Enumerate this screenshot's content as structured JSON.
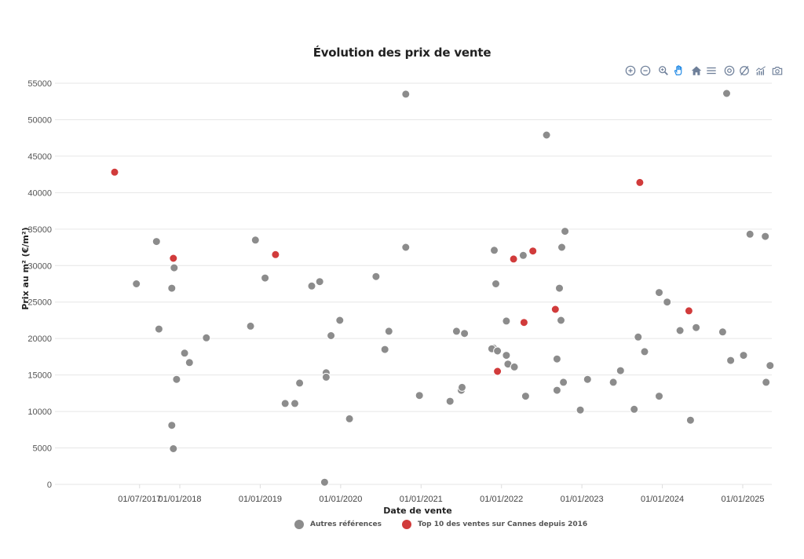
{
  "title": "Évolution des prix de vente",
  "toolbar": {
    "buttons": [
      {
        "name": "zoom-in-icon",
        "label": "Zoom in"
      },
      {
        "name": "zoom-out-icon",
        "label": "Zoom out"
      },
      {
        "name": "zoom-selection-icon",
        "label": "Selection zoom"
      },
      {
        "name": "pan-hand-icon",
        "label": "Panning",
        "active": true
      },
      {
        "name": "home-reset-icon",
        "label": "Reset zoom"
      },
      {
        "name": "menu-icon",
        "label": "Menu"
      },
      {
        "name": "circle-target-icon",
        "label": "Marker"
      },
      {
        "name": "circle-slash-icon",
        "label": "Clear"
      },
      {
        "name": "chart-bars-icon",
        "label": "Chart"
      },
      {
        "name": "camera-icon",
        "label": "Download"
      }
    ]
  },
  "colors": {
    "grey_series": "#8c8c8c",
    "red_series": "#d13b3b",
    "grid": "#e6e6e6",
    "toolbar_icon": "#6e7f99",
    "toolbar_active": "#1e88e5"
  },
  "chart_data": {
    "type": "scatter",
    "title": "Évolution des prix de vente",
    "xlabel": "Date de vente",
    "ylabel": "Prix au m² (€/m²)",
    "ylim": [
      0,
      55000
    ],
    "yticks": [
      0,
      5000,
      10000,
      15000,
      20000,
      25000,
      30000,
      35000,
      40000,
      45000,
      50000,
      55000
    ],
    "xlim": [
      2017.16,
      2025.38
    ],
    "xticks": [
      {
        "label": "01/07/2017",
        "x": 2017.5
      },
      {
        "label": "01/01/2018",
        "x": 2018.0
      },
      {
        "label": "01/01/2019",
        "x": 2019.0
      },
      {
        "label": "01/01/2020",
        "x": 2020.0
      },
      {
        "label": "01/01/2021",
        "x": 2021.0
      },
      {
        "label": "01/01/2022",
        "x": 2022.0
      },
      {
        "label": "01/01/2023",
        "x": 2023.0
      },
      {
        "label": "01/01/2024",
        "x": 2024.0
      },
      {
        "label": "01/01/2025",
        "x": 2025.0
      }
    ],
    "grid": true,
    "legend_position": "bottom",
    "series": [
      {
        "name": "Autres références",
        "color": "#8c8c8c",
        "points": [
          [
            2017.46,
            27500
          ],
          [
            2017.71,
            33300
          ],
          [
            2017.96,
            14400
          ],
          [
            2017.74,
            21300
          ],
          [
            2017.9,
            26900
          ],
          [
            2017.93,
            29700
          ],
          [
            2017.9,
            8100
          ],
          [
            2017.92,
            4900
          ],
          [
            2018.06,
            18000
          ],
          [
            2018.12,
            16700
          ],
          [
            2018.33,
            20100
          ],
          [
            2018.88,
            21700
          ],
          [
            2018.94,
            33500
          ],
          [
            2019.06,
            28300
          ],
          [
            2019.31,
            11100
          ],
          [
            2019.43,
            11100
          ],
          [
            2019.49,
            13900
          ],
          [
            2019.64,
            27200
          ],
          [
            2019.74,
            27800
          ],
          [
            2019.82,
            15300
          ],
          [
            2019.82,
            14700
          ],
          [
            2019.8,
            300
          ],
          [
            2019.88,
            20400
          ],
          [
            2019.99,
            22500
          ],
          [
            2020.11,
            9000
          ],
          [
            2020.44,
            28500
          ],
          [
            2020.55,
            18500
          ],
          [
            2020.6,
            21000
          ],
          [
            2020.81,
            32500
          ],
          [
            2020.81,
            53500
          ],
          [
            2020.98,
            12200
          ],
          [
            2021.36,
            11400
          ],
          [
            2021.44,
            21000
          ],
          [
            2021.5,
            12900
          ],
          [
            2021.51,
            13300
          ],
          [
            2021.54,
            20700
          ],
          [
            2021.9,
            18700
          ],
          [
            2021.88,
            18600
          ],
          [
            2021.91,
            32100
          ],
          [
            2021.93,
            27500
          ],
          [
            2021.95,
            18300
          ],
          [
            2022.06,
            22400
          ],
          [
            2022.06,
            17700
          ],
          [
            2022.08,
            16500
          ],
          [
            2022.16,
            16100
          ],
          [
            2022.27,
            31400
          ],
          [
            2022.3,
            12100
          ],
          [
            2022.56,
            47900
          ],
          [
            2022.69,
            12900
          ],
          [
            2022.69,
            17200
          ],
          [
            2022.72,
            26900
          ],
          [
            2022.74,
            22500
          ],
          [
            2022.75,
            32500
          ],
          [
            2022.77,
            14000
          ],
          [
            2022.79,
            34700
          ],
          [
            2022.98,
            10200
          ],
          [
            2023.07,
            14400
          ],
          [
            2023.39,
            14000
          ],
          [
            2023.48,
            15600
          ],
          [
            2023.65,
            10300
          ],
          [
            2023.7,
            20200
          ],
          [
            2023.78,
            18200
          ],
          [
            2023.96,
            26300
          ],
          [
            2023.96,
            12100
          ],
          [
            2024.06,
            25000
          ],
          [
            2024.22,
            21100
          ],
          [
            2024.35,
            8800
          ],
          [
            2024.42,
            21500
          ],
          [
            2024.75,
            20900
          ],
          [
            2024.8,
            53600
          ],
          [
            2024.85,
            17000
          ],
          [
            2025.01,
            17700
          ],
          [
            2025.09,
            34300
          ],
          [
            2025.28,
            34000
          ],
          [
            2025.29,
            14000
          ],
          [
            2025.34,
            16300
          ]
        ]
      },
      {
        "name": "Top 10 des ventes sur Cannes depuis 2016",
        "color": "#d13b3b",
        "points": [
          [
            2017.19,
            42800
          ],
          [
            2017.92,
            31000
          ],
          [
            2019.19,
            31500
          ],
          [
            2021.95,
            15500
          ],
          [
            2022.15,
            30900
          ],
          [
            2022.28,
            22200
          ],
          [
            2022.39,
            32000
          ],
          [
            2022.67,
            24000
          ],
          [
            2023.72,
            41400
          ],
          [
            2024.33,
            23800
          ]
        ]
      }
    ]
  },
  "legend": {
    "items": [
      {
        "label": "Autres références",
        "color": "#8c8c8c"
      },
      {
        "label": "Top 10 des ventes sur Cannes depuis 2016",
        "color": "#d13b3b"
      }
    ]
  }
}
